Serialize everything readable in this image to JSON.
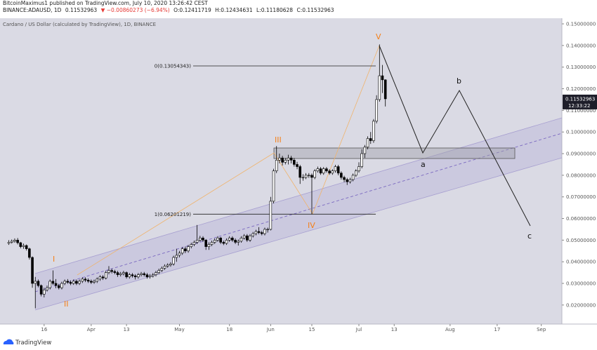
{
  "header": {
    "publisher": "BitcoinMaximus1 published on TradingView.com, July 10, 2020 13:26:42 CEST",
    "symbol": "BINANCE:ADAUSD, 1D",
    "price": "0.11532963",
    "change": "▼ −0.00860273 (−6.94%)",
    "open": "O:0.12411719",
    "high": "H:0.12434631",
    "low": "L:0.11180628",
    "close": "C:0.11532963"
  },
  "footer": {
    "brand": "TradingView"
  },
  "chart_data": {
    "type": "candlestick",
    "title": "Cardano / US Dollar (calculated by TradingView), 1D, BINANCE",
    "up_color": "#ffffff",
    "down_color": "#000000",
    "edge_color": "#000000",
    "xlim": [
      "2020-03-01",
      "2020-09-08"
    ],
    "ylim": [
      0.0112,
      0.1526
    ],
    "xticks": [
      {
        "value": "2020-03-16",
        "label": "16"
      },
      {
        "value": "2020-04-01",
        "label": "Apr"
      },
      {
        "value": "2020-04-13",
        "label": "13"
      },
      {
        "value": "2020-05-01",
        "label": "May"
      },
      {
        "value": "2020-05-18",
        "label": "18"
      },
      {
        "value": "2020-06-01",
        "label": "Jun"
      },
      {
        "value": "2020-06-15",
        "label": "15"
      },
      {
        "value": "2020-07-01",
        "label": "Jul"
      },
      {
        "value": "2020-07-13",
        "label": "13"
      },
      {
        "value": "2020-08-01",
        "label": "Aug"
      },
      {
        "value": "2020-08-17",
        "label": "17"
      },
      {
        "value": "2020-09-01",
        "label": "Sep"
      }
    ],
    "yticks": [
      {
        "value": 0.02,
        "label": "0.02000000"
      },
      {
        "value": 0.03,
        "label": "0.03000000"
      },
      {
        "value": 0.04,
        "label": "0.04000000"
      },
      {
        "value": 0.05,
        "label": "0.05000000"
      },
      {
        "value": 0.06,
        "label": "0.06000000"
      },
      {
        "value": 0.07,
        "label": "0.07000000"
      },
      {
        "value": 0.08,
        "label": "0.08000000"
      },
      {
        "value": 0.09,
        "label": "0.09000000"
      },
      {
        "value": 0.1,
        "label": "0.10000000"
      },
      {
        "value": 0.11,
        "label": "0.11000000"
      },
      {
        "value": 0.12,
        "label": "0.12000000"
      },
      {
        "value": 0.13,
        "label": "0.13000000"
      },
      {
        "value": 0.14,
        "label": "0.14000000"
      },
      {
        "value": 0.15,
        "label": "0.15000000"
      }
    ],
    "price_tag": {
      "value": 0.11532963,
      "label": "0.11532963",
      "countdown": "12:33:22"
    },
    "fib_levels": [
      {
        "value": 0.13054343,
        "label": "0(0.13054343)"
      },
      {
        "value": 0.06201219,
        "label": "1(0.06201219)"
      }
    ],
    "waves": [
      "I",
      "II",
      "III",
      "IV",
      "V"
    ],
    "projection": [
      "a",
      "b",
      "c"
    ],
    "x": [
      "2020-03-04",
      "2020-03-05",
      "2020-03-06",
      "2020-03-07",
      "2020-03-08",
      "2020-03-09",
      "2020-03-10",
      "2020-03-11",
      "2020-03-12",
      "2020-03-13",
      "2020-03-14",
      "2020-03-15",
      "2020-03-16",
      "2020-03-17",
      "2020-03-18",
      "2020-03-19",
      "2020-03-20",
      "2020-03-21",
      "2020-03-22",
      "2020-03-23",
      "2020-03-24",
      "2020-03-25",
      "2020-03-26",
      "2020-03-27",
      "2020-03-28",
      "2020-03-29",
      "2020-03-30",
      "2020-03-31",
      "2020-04-01",
      "2020-04-02",
      "2020-04-03",
      "2020-04-04",
      "2020-04-05",
      "2020-04-06",
      "2020-04-07",
      "2020-04-08",
      "2020-04-09",
      "2020-04-10",
      "2020-04-11",
      "2020-04-12",
      "2020-04-13",
      "2020-04-14",
      "2020-04-15",
      "2020-04-16",
      "2020-04-17",
      "2020-04-18",
      "2020-04-19",
      "2020-04-20",
      "2020-04-21",
      "2020-04-22",
      "2020-04-23",
      "2020-04-24",
      "2020-04-25",
      "2020-04-26",
      "2020-04-27",
      "2020-04-28",
      "2020-04-29",
      "2020-04-30",
      "2020-05-01",
      "2020-05-02",
      "2020-05-03",
      "2020-05-04",
      "2020-05-05",
      "2020-05-06",
      "2020-05-07",
      "2020-05-08",
      "2020-05-09",
      "2020-05-10",
      "2020-05-11",
      "2020-05-12",
      "2020-05-13",
      "2020-05-14",
      "2020-05-15",
      "2020-05-16",
      "2020-05-17",
      "2020-05-18",
      "2020-05-19",
      "2020-05-20",
      "2020-05-21",
      "2020-05-22",
      "2020-05-23",
      "2020-05-24",
      "2020-05-25",
      "2020-05-26",
      "2020-05-27",
      "2020-05-28",
      "2020-05-29",
      "2020-05-30",
      "2020-05-31",
      "2020-06-01",
      "2020-06-02",
      "2020-06-03",
      "2020-06-04",
      "2020-06-05",
      "2020-06-06",
      "2020-06-07",
      "2020-06-08",
      "2020-06-09",
      "2020-06-10",
      "2020-06-11",
      "2020-06-12",
      "2020-06-13",
      "2020-06-14",
      "2020-06-15",
      "2020-06-16",
      "2020-06-17",
      "2020-06-18",
      "2020-06-19",
      "2020-06-20",
      "2020-06-21",
      "2020-06-22",
      "2020-06-23",
      "2020-06-24",
      "2020-06-25",
      "2020-06-26",
      "2020-06-27",
      "2020-06-28",
      "2020-06-29",
      "2020-06-30",
      "2020-07-01",
      "2020-07-02",
      "2020-07-03",
      "2020-07-04",
      "2020-07-05",
      "2020-07-06",
      "2020-07-07",
      "2020-07-08",
      "2020-07-09",
      "2020-07-10"
    ],
    "series": [
      {
        "name": "ADAUSD",
        "open": [
          0.0485,
          0.049,
          0.0495,
          0.05,
          0.0488,
          0.047,
          0.0475,
          0.046,
          0.042,
          0.03,
          0.031,
          0.029,
          0.025,
          0.027,
          0.028,
          0.031,
          0.03,
          0.029,
          0.028,
          0.03,
          0.031,
          0.0305,
          0.03,
          0.031,
          0.03,
          0.031,
          0.032,
          0.0315,
          0.031,
          0.0305,
          0.031,
          0.032,
          0.033,
          0.0325,
          0.035,
          0.036,
          0.0355,
          0.035,
          0.034,
          0.0345,
          0.035,
          0.033,
          0.034,
          0.0335,
          0.033,
          0.034,
          0.0345,
          0.034,
          0.033,
          0.0335,
          0.034,
          0.035,
          0.036,
          0.037,
          0.038,
          0.0385,
          0.039,
          0.042,
          0.043,
          0.044,
          0.046,
          0.045,
          0.047,
          0.048,
          0.049,
          0.05,
          0.051,
          0.05,
          0.047,
          0.048,
          0.049,
          0.05,
          0.051,
          0.049,
          0.0485,
          0.05,
          0.051,
          0.05,
          0.049,
          0.0495,
          0.051,
          0.052,
          0.05,
          0.052,
          0.053,
          0.054,
          0.0535,
          0.053,
          0.055,
          0.055,
          0.068,
          0.082,
          0.087,
          0.088,
          0.086,
          0.087,
          0.088,
          0.087,
          0.085,
          0.084,
          0.079,
          0.079,
          0.08,
          0.08,
          0.079,
          0.082,
          0.083,
          0.081,
          0.083,
          0.082,
          0.081,
          0.082,
          0.084,
          0.081,
          0.079,
          0.078,
          0.077,
          0.078,
          0.08,
          0.082,
          0.084,
          0.09,
          0.093,
          0.097,
          0.096,
          0.105,
          0.115,
          0.126,
          0.12411719
        ],
        "high": [
          0.05,
          0.0503,
          0.0508,
          0.051,
          0.0492,
          0.0484,
          0.048,
          0.0465,
          0.0425,
          0.033,
          0.0318,
          0.0295,
          0.028,
          0.029,
          0.0318,
          0.036,
          0.032,
          0.0298,
          0.0308,
          0.0318,
          0.032,
          0.0314,
          0.0318,
          0.0318,
          0.0318,
          0.0328,
          0.0328,
          0.0323,
          0.0318,
          0.0318,
          0.0328,
          0.0338,
          0.0338,
          0.0358,
          0.038,
          0.0368,
          0.0363,
          0.0358,
          0.0353,
          0.0358,
          0.0355,
          0.0348,
          0.0348,
          0.0343,
          0.0348,
          0.0353,
          0.0353,
          0.0348,
          0.0343,
          0.0348,
          0.0358,
          0.0368,
          0.0378,
          0.0388,
          0.0393,
          0.0398,
          0.0428,
          0.046,
          0.045,
          0.0468,
          0.047,
          0.0478,
          0.0488,
          0.0498,
          0.057,
          0.052,
          0.0518,
          0.0505,
          0.049,
          0.0498,
          0.0508,
          0.0518,
          0.0515,
          0.0498,
          0.0508,
          0.0518,
          0.0518,
          0.0508,
          0.0503,
          0.0518,
          0.0528,
          0.0528,
          0.0528,
          0.0538,
          0.0548,
          0.056,
          0.0543,
          0.0558,
          0.0558,
          0.07,
          0.083,
          0.0935,
          0.09,
          0.089,
          0.088,
          0.0895,
          0.089,
          0.088,
          0.0862,
          0.0848,
          0.0805,
          0.081,
          0.081,
          0.0808,
          0.0828,
          0.084,
          0.0838,
          0.0838,
          0.0838,
          0.0828,
          0.0828,
          0.0848,
          0.0848,
          0.0818,
          0.0798,
          0.0788,
          0.0788,
          0.0808,
          0.0828,
          0.086,
          0.092,
          0.094,
          0.098,
          0.1,
          0.106,
          0.117,
          0.1405,
          0.131,
          0.12434631
        ],
        "low": [
          0.0478,
          0.0484,
          0.0488,
          0.048,
          0.0462,
          0.046,
          0.0452,
          0.041,
          0.028,
          0.0185,
          0.0282,
          0.024,
          0.0235,
          0.0262,
          0.0272,
          0.0292,
          0.0278,
          0.0272,
          0.0272,
          0.0292,
          0.0298,
          0.0292,
          0.0293,
          0.0292,
          0.0293,
          0.0302,
          0.0306,
          0.0302,
          0.0297,
          0.0298,
          0.0302,
          0.0312,
          0.0316,
          0.0318,
          0.0342,
          0.0346,
          0.0342,
          0.033,
          0.0332,
          0.0337,
          0.0322,
          0.0322,
          0.0327,
          0.0318,
          0.0322,
          0.0332,
          0.0332,
          0.0322,
          0.0322,
          0.0327,
          0.0332,
          0.0342,
          0.0352,
          0.0362,
          0.0372,
          0.0377,
          0.0382,
          0.04,
          0.042,
          0.0432,
          0.044,
          0.0442,
          0.0462,
          0.0472,
          0.0482,
          0.0492,
          0.0492,
          0.0455,
          0.0455,
          0.0472,
          0.0482,
          0.0492,
          0.0482,
          0.0477,
          0.0478,
          0.0492,
          0.0492,
          0.0482,
          0.0475,
          0.0488,
          0.0502,
          0.0492,
          0.0492,
          0.0512,
          0.0522,
          0.0527,
          0.0522,
          0.0522,
          0.0535,
          0.0545,
          0.067,
          0.081,
          0.0855,
          0.0845,
          0.085,
          0.085,
          0.0855,
          0.084,
          0.0828,
          0.076,
          0.0775,
          0.0782,
          0.0788,
          0.062,
          0.0782,
          0.0812,
          0.0802,
          0.0802,
          0.0812,
          0.0802,
          0.0802,
          0.0812,
          0.08,
          0.078,
          0.0768,
          0.0755,
          0.0762,
          0.0772,
          0.0792,
          0.0812,
          0.0832,
          0.088,
          0.092,
          0.0945,
          0.095,
          0.104,
          0.114,
          0.118,
          0.11180628
        ],
        "close": [
          0.049,
          0.0495,
          0.05,
          0.0488,
          0.047,
          0.0475,
          0.046,
          0.042,
          0.03,
          0.031,
          0.029,
          0.025,
          0.027,
          0.028,
          0.031,
          0.03,
          0.029,
          0.028,
          0.03,
          0.031,
          0.0305,
          0.03,
          0.031,
          0.03,
          0.031,
          0.032,
          0.0315,
          0.031,
          0.0305,
          0.031,
          0.032,
          0.033,
          0.0325,
          0.035,
          0.036,
          0.0355,
          0.035,
          0.034,
          0.0345,
          0.035,
          0.033,
          0.034,
          0.0335,
          0.033,
          0.034,
          0.0345,
          0.034,
          0.033,
          0.0335,
          0.034,
          0.035,
          0.036,
          0.037,
          0.038,
          0.0385,
          0.039,
          0.042,
          0.043,
          0.044,
          0.046,
          0.045,
          0.047,
          0.048,
          0.049,
          0.05,
          0.051,
          0.05,
          0.047,
          0.048,
          0.049,
          0.05,
          0.051,
          0.049,
          0.0485,
          0.05,
          0.051,
          0.05,
          0.049,
          0.0495,
          0.051,
          0.052,
          0.05,
          0.052,
          0.053,
          0.054,
          0.0535,
          0.053,
          0.055,
          0.055,
          0.068,
          0.082,
          0.087,
          0.088,
          0.086,
          0.087,
          0.088,
          0.087,
          0.085,
          0.084,
          0.079,
          0.079,
          0.08,
          0.08,
          0.079,
          0.082,
          0.083,
          0.081,
          0.083,
          0.082,
          0.081,
          0.082,
          0.084,
          0.081,
          0.079,
          0.078,
          0.077,
          0.078,
          0.08,
          0.082,
          0.084,
          0.09,
          0.093,
          0.097,
          0.096,
          0.105,
          0.115,
          0.126,
          0.12411719,
          0.11532963
        ]
      }
    ]
  }
}
